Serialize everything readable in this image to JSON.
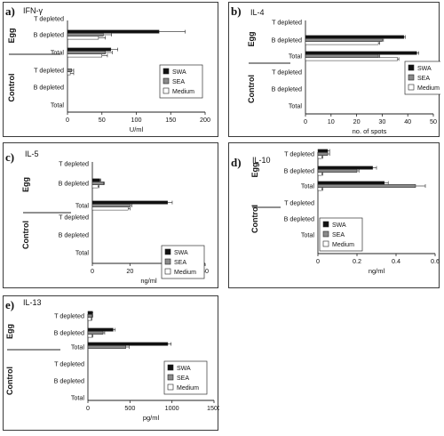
{
  "figure": {
    "legend": [
      "SWA",
      "SEA",
      "Medium"
    ],
    "group_labels": [
      "Egg",
      "Control"
    ],
    "row_labels": [
      "T depleted",
      "B depleted",
      "Total",
      "T depleted",
      "B depleted",
      "Total"
    ],
    "series_colors": {
      "SWA": "#111111",
      "SEA": "#8a8a8a",
      "Medium": "#ffffff"
    }
  },
  "chart_data": [
    {
      "type": "bar",
      "orientation": "horizontal",
      "letter": "a)",
      "title": "IFN-γ",
      "xlabel": "U/ml",
      "xlim": [
        0,
        200
      ],
      "xticks": [
        0,
        50,
        100,
        150,
        200
      ],
      "series": [
        {
          "name": "SWA",
          "values": [
            0,
            133,
            63,
            0,
            0,
            0
          ],
          "errors": [
            0,
            38,
            10,
            0,
            0,
            0
          ]
        },
        {
          "name": "SEA",
          "values": [
            0,
            52,
            55,
            6,
            0,
            0
          ],
          "errors": [
            0,
            12,
            10,
            3,
            0,
            0
          ]
        },
        {
          "name": "Medium",
          "values": [
            0,
            45,
            50,
            4,
            0,
            0
          ],
          "errors": [
            0,
            10,
            8,
            5,
            0,
            0
          ]
        }
      ]
    },
    {
      "type": "bar",
      "orientation": "horizontal",
      "letter": "b)",
      "title": "IL-4",
      "xlabel": "no. of spots",
      "xlim": [
        0,
        50
      ],
      "xticks": [
        0,
        10,
        20,
        30,
        40,
        50
      ],
      "series": [
        {
          "name": "SWA",
          "values": [
            0,
            38.5,
            43.5,
            0,
            0,
            0
          ],
          "errors": [
            0,
            0.5,
            0.8,
            0,
            0,
            0
          ]
        },
        {
          "name": "SEA",
          "values": [
            0,
            30,
            28.5,
            0,
            0,
            0
          ],
          "errors": [
            0,
            0.5,
            0.5,
            0,
            0,
            0
          ]
        },
        {
          "name": "Medium",
          "values": [
            0,
            28.5,
            36,
            0,
            0,
            0
          ],
          "errors": [
            0,
            0.5,
            0.5,
            0,
            0,
            0
          ]
        }
      ]
    },
    {
      "type": "bar",
      "orientation": "horizontal",
      "letter": "c)",
      "title": "IL-5",
      "xlabel": "ng/ml",
      "xlim": [
        0,
        60
      ],
      "xticks": [
        0,
        20,
        40,
        60
      ],
      "series": [
        {
          "name": "SWA",
          "values": [
            0,
            4,
            40,
            0,
            0,
            0
          ],
          "errors": [
            0,
            0.5,
            2.5,
            0,
            0,
            0
          ]
        },
        {
          "name": "SEA",
          "values": [
            0,
            6,
            20,
            0,
            0,
            0
          ],
          "errors": [
            0,
            0.5,
            1,
            0,
            0,
            0
          ]
        },
        {
          "name": "Medium",
          "values": [
            0,
            3,
            19,
            0,
            0,
            0
          ],
          "errors": [
            0,
            0.5,
            1,
            0,
            0,
            0
          ]
        }
      ]
    },
    {
      "type": "bar",
      "orientation": "horizontal",
      "letter": "d)",
      "title": "IL-10",
      "xlabel": "ng/ml",
      "xlim": [
        0,
        0.6
      ],
      "xticks": [
        0,
        0.2,
        0.4,
        0.6
      ],
      "series": [
        {
          "name": "SWA",
          "values": [
            0.05,
            0.28,
            0.34,
            0,
            0,
            0
          ],
          "errors": [
            0.01,
            0.02,
            0.02,
            0,
            0,
            0
          ]
        },
        {
          "name": "SEA",
          "values": [
            0.05,
            0.2,
            0.5,
            0,
            0,
            0
          ],
          "errors": [
            0.01,
            0.01,
            0.05,
            0,
            0,
            0
          ]
        },
        {
          "name": "Medium",
          "values": [
            0.02,
            0.02,
            0.02,
            0,
            0,
            0
          ],
          "errors": [
            0.005,
            0.005,
            0.005,
            0,
            0,
            0
          ]
        }
      ]
    },
    {
      "type": "bar",
      "orientation": "horizontal",
      "letter": "e)",
      "title": "IL-13",
      "xlabel": "pg/ml",
      "xlim": [
        0,
        1500
      ],
      "xticks": [
        0,
        500,
        1000,
        1500
      ],
      "series": [
        {
          "name": "SWA",
          "values": [
            50,
            300,
            950,
            0,
            0,
            0
          ],
          "errors": [
            10,
            25,
            40,
            0,
            0,
            0
          ]
        },
        {
          "name": "SEA",
          "values": [
            50,
            180,
            450,
            0,
            0,
            0
          ],
          "errors": [
            10,
            20,
            40,
            0,
            0,
            0
          ]
        },
        {
          "name": "Medium",
          "values": [
            40,
            50,
            0,
            0,
            0,
            0
          ],
          "errors": [
            8,
            10,
            0,
            0,
            0,
            0
          ]
        }
      ]
    }
  ]
}
